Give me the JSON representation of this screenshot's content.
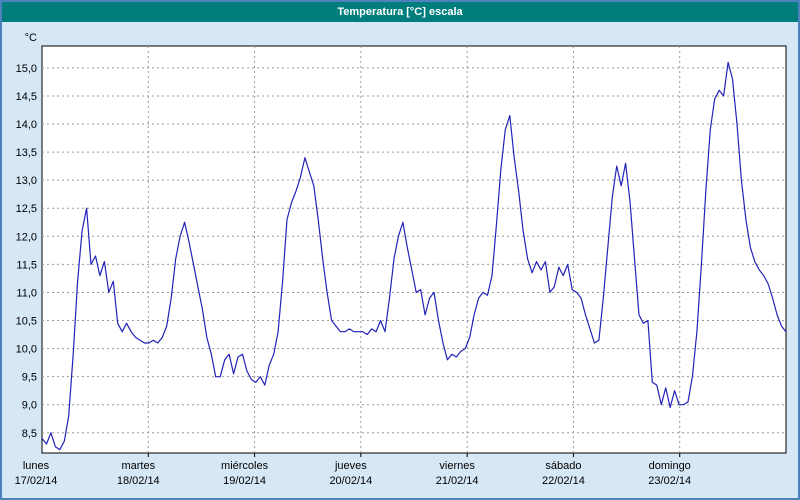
{
  "window": {
    "title": "Temperatura [°C] escala"
  },
  "chart_data": {
    "type": "line",
    "title": "Temperatura [°C] escala",
    "unit_label": "°C",
    "legend_position": "none",
    "grid": true,
    "colors": {
      "line": "#2222b8",
      "grid": "#999999",
      "plot_background": "#ffffff",
      "window_background": "#d6e7f5",
      "titlebar": "#007d7d",
      "border": "#4f81bd",
      "axis": "#000000"
    },
    "ylim": [
      8.14,
      15.39
    ],
    "y_ticks": [
      8.5,
      9.0,
      9.5,
      10.0,
      10.5,
      11.0,
      11.5,
      12.0,
      12.5,
      13.0,
      13.5,
      14.0,
      14.5,
      15.0
    ],
    "y_tick_labels": [
      "8,5",
      "9,0",
      "9,5",
      "10,0",
      "10,5",
      "11,0",
      "11,5",
      "12,0",
      "12,5",
      "13,0",
      "13,5",
      "14,0",
      "14,5",
      "15,0"
    ],
    "days": [
      {
        "name": "lunes",
        "date": "17/02/14"
      },
      {
        "name": "martes",
        "date": "18/02/14"
      },
      {
        "name": "miércoles",
        "date": "19/02/14"
      },
      {
        "name": "jueves",
        "date": "20/02/14"
      },
      {
        "name": "viernes",
        "date": "21/02/14"
      },
      {
        "name": "sábado",
        "date": "22/02/14"
      },
      {
        "name": "domingo",
        "date": "23/02/14"
      }
    ],
    "points_per_day": 24,
    "values": [
      8.4,
      8.3,
      8.5,
      8.25,
      8.2,
      8.35,
      8.8,
      9.9,
      11.2,
      12.1,
      12.5,
      11.5,
      11.65,
      11.3,
      11.55,
      11.0,
      11.2,
      10.45,
      10.3,
      10.45,
      10.3,
      10.2,
      10.15,
      10.1,
      10.1,
      10.15,
      10.1,
      10.2,
      10.4,
      10.9,
      11.6,
      12.0,
      12.25,
      11.9,
      11.5,
      11.1,
      10.7,
      10.2,
      9.9,
      9.5,
      9.5,
      9.8,
      9.9,
      9.55,
      9.85,
      9.9,
      9.6,
      9.45,
      9.4,
      9.5,
      9.35,
      9.7,
      9.9,
      10.3,
      11.2,
      12.3,
      12.6,
      12.8,
      13.05,
      13.4,
      13.15,
      12.9,
      12.3,
      11.6,
      11.0,
      10.5,
      10.4,
      10.3,
      10.3,
      10.35,
      10.3,
      10.3,
      10.3,
      10.25,
      10.35,
      10.3,
      10.5,
      10.3,
      10.9,
      11.6,
      12.0,
      12.25,
      11.8,
      11.4,
      11.0,
      11.05,
      10.6,
      10.9,
      11.0,
      10.5,
      10.1,
      9.8,
      9.9,
      9.85,
      9.95,
      10.0,
      10.2,
      10.6,
      10.9,
      11.0,
      10.95,
      11.3,
      12.2,
      13.2,
      13.9,
      14.15,
      13.4,
      12.8,
      12.1,
      11.6,
      11.35,
      11.55,
      11.4,
      11.55,
      11.0,
      11.1,
      11.45,
      11.3,
      11.5,
      11.05,
      11.0,
      10.9,
      10.6,
      10.35,
      10.1,
      10.15,
      10.9,
      11.8,
      12.7,
      13.25,
      12.9,
      13.3,
      12.6,
      11.6,
      10.6,
      10.45,
      10.5,
      9.4,
      9.35,
      9.0,
      9.3,
      8.95,
      9.25,
      9.0,
      9.0,
      9.05,
      9.5,
      10.3,
      11.5,
      12.8,
      13.9,
      14.45,
      14.6,
      14.5,
      15.1,
      14.8,
      14.0,
      13.0,
      12.3,
      11.8,
      11.55,
      11.4,
      11.3,
      11.15,
      10.9,
      10.6,
      10.4,
      10.3
    ]
  }
}
